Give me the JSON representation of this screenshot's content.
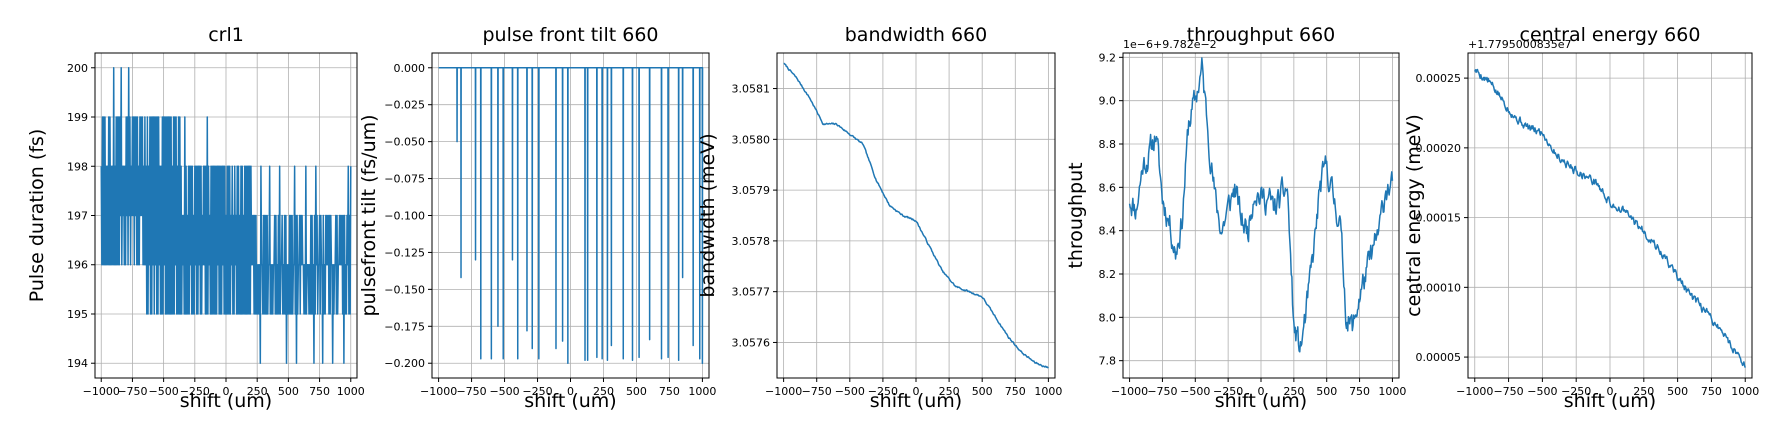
{
  "figure": {
    "background": "#ffffff",
    "line_color": "#1f77b4",
    "grid": true
  },
  "chart_data": [
    {
      "type": "line",
      "title": "crl1",
      "xlabel": "shift (um)",
      "ylabel": "Pulse duration (fs)",
      "xlim": [
        -1050,
        1050
      ],
      "ylim": [
        193.7,
        200.3
      ],
      "xticks": [
        -1000,
        -750,
        -500,
        -250,
        0,
        250,
        500,
        750,
        1000
      ],
      "xticklabels": [
        "−1000",
        "−750",
        "−500",
        "−250",
        "0",
        "250",
        "500",
        "750",
        "1000"
      ],
      "yticks": [
        194,
        195,
        196,
        197,
        198,
        199,
        200
      ],
      "yticklabels": [
        "194",
        "195",
        "196",
        "197",
        "198",
        "199",
        "200"
      ],
      "offset_text": "",
      "generator": "oscillate",
      "params": {
        "x0": -1000,
        "x1": 1000,
        "segments": [
          {
            "from": -1000,
            "to": -640,
            "low": 196,
            "high": 199,
            "peaks": [
              [
                -900,
                200
              ],
              [
                -840,
                200
              ],
              [
                -780,
                200
              ],
              [
                -640,
                200
              ]
            ]
          },
          {
            "from": -640,
            "to": -350,
            "low": 195,
            "high": 199,
            "peaks": []
          },
          {
            "from": -350,
            "to": 250,
            "low": 195,
            "high": 198,
            "peaks": [
              [
                -330,
                199
              ],
              [
                -150,
                199
              ]
            ]
          },
          {
            "from": 250,
            "to": 1000,
            "low": 195,
            "high": 197,
            "peaks": [
              [
                280,
                198
              ],
              [
                350,
                198
              ],
              [
                430,
                198
              ],
              [
                550,
                198
              ],
              [
                640,
                198
              ],
              [
                720,
                198
              ],
              [
                980,
                198
              ]
            ],
            "dips": [
              [
                270,
                194
              ],
              [
                480,
                194
              ],
              [
                560,
                194
              ],
              [
                700,
                194
              ],
              [
                770,
                194
              ],
              [
                850,
                194
              ],
              [
                940,
                194
              ]
            ]
          }
        ]
      }
    },
    {
      "type": "line",
      "title": "pulse front tilt 660",
      "xlabel": "shift (um)",
      "ylabel": "pulsefront tilt (fs/um)",
      "xlim": [
        -1050,
        1050
      ],
      "ylim": [
        -0.21,
        0.01
      ],
      "xticks": [
        -1000,
        -750,
        -500,
        -250,
        0,
        250,
        500,
        750,
        1000
      ],
      "xticklabels": [
        "−1000",
        "−750",
        "−500",
        "−250",
        "0",
        "250",
        "500",
        "750",
        "1000"
      ],
      "yticks": [
        0.0,
        -0.025,
        -0.05,
        -0.075,
        -0.1,
        -0.125,
        -0.15,
        -0.175,
        -0.2
      ],
      "yticklabels": [
        "0.000",
        "−0.025",
        "−0.050",
        "−0.075",
        "−0.100",
        "−0.125",
        "−0.150",
        "−0.175",
        "−0.200"
      ],
      "offset_text": "",
      "generator": "spikes",
      "params": {
        "base": 0.0,
        "spikes": [
          [
            -860,
            -0.05
          ],
          [
            -830,
            -0.142
          ],
          [
            -720,
            -0.13
          ],
          [
            -680,
            -0.197
          ],
          [
            -600,
            -0.197
          ],
          [
            -550,
            -0.175
          ],
          [
            -510,
            -0.197
          ],
          [
            -440,
            -0.13
          ],
          [
            -400,
            -0.197
          ],
          [
            -330,
            -0.178
          ],
          [
            -290,
            -0.19
          ],
          [
            -240,
            -0.197
          ],
          [
            -110,
            -0.19
          ],
          [
            -60,
            -0.185
          ],
          [
            -20,
            -0.2
          ],
          [
            110,
            -0.198
          ],
          [
            130,
            -0.198
          ],
          [
            200,
            -0.196
          ],
          [
            240,
            -0.197
          ],
          [
            280,
            -0.198
          ],
          [
            310,
            -0.188
          ],
          [
            400,
            -0.197
          ],
          [
            470,
            -0.198
          ],
          [
            520,
            -0.196
          ],
          [
            600,
            -0.184
          ],
          [
            690,
            -0.197
          ],
          [
            740,
            -0.196
          ],
          [
            820,
            -0.198
          ],
          [
            850,
            -0.142
          ],
          [
            930,
            -0.188
          ],
          [
            980,
            -0.197
          ],
          [
            1000,
            -0.2
          ]
        ]
      }
    },
    {
      "type": "line",
      "title": "bandwidth 660",
      "xlabel": "shift (um)",
      "ylabel": "bandwidth (meV)",
      "xlim": [
        -1050,
        1050
      ],
      "ylim": [
        3.05753,
        3.05817
      ],
      "xticks": [
        -1000,
        -750,
        -500,
        -250,
        0,
        250,
        500,
        750,
        1000
      ],
      "xticklabels": [
        "−1000",
        "−750",
        "−500",
        "−250",
        "0",
        "250",
        "500",
        "750",
        "1000"
      ],
      "yticks": [
        3.0576,
        3.0577,
        3.0578,
        3.0579,
        3.058,
        3.0581
      ],
      "yticklabels": [
        "3.0576",
        "3.0577",
        "3.0578",
        "3.0579",
        "3.0580",
        "3.0581"
      ],
      "offset_text": "",
      "generator": "wiggle",
      "params": {
        "points": [
          [
            -1000,
            3.05815
          ],
          [
            -900,
            3.05812
          ],
          [
            -800,
            3.05808
          ],
          [
            -700,
            3.05803
          ],
          [
            -600,
            3.05803
          ],
          [
            -500,
            3.05801
          ],
          [
            -400,
            3.05799
          ],
          [
            -300,
            3.05792
          ],
          [
            -200,
            3.05787
          ],
          [
            -100,
            3.05785
          ],
          [
            0,
            3.05784
          ],
          [
            100,
            3.05779
          ],
          [
            200,
            3.05774
          ],
          [
            300,
            3.05771
          ],
          [
            400,
            3.0577
          ],
          [
            500,
            3.05769
          ],
          [
            600,
            3.05765
          ],
          [
            700,
            3.05761
          ],
          [
            800,
            3.05758
          ],
          [
            900,
            3.05756
          ],
          [
            1000,
            3.05755
          ]
        ],
        "noise": 1.5e-06,
        "seed": 7
      }
    },
    {
      "type": "line",
      "title": "throughput 660",
      "xlabel": "shift (um)",
      "ylabel": "throughput",
      "xlim": [
        -1050,
        1050
      ],
      "ylim": [
        7.72,
        9.22
      ],
      "xticks": [
        -1000,
        -750,
        -500,
        -250,
        0,
        250,
        500,
        750,
        1000
      ],
      "xticklabels": [
        "−1000",
        "−750",
        "−500",
        "−250",
        "0",
        "250",
        "500",
        "750",
        "1000"
      ],
      "yticks": [
        7.8,
        8.0,
        8.2,
        8.4,
        8.6,
        8.8,
        9.0,
        9.2
      ],
      "yticklabels": [
        "7.8",
        "8.0",
        "8.2",
        "8.4",
        "8.6",
        "8.8",
        "9.0",
        "9.2"
      ],
      "offset_text": "1e−6+9.782e−2",
      "generator": "wiggle",
      "params": {
        "points": [
          [
            -1000,
            8.55
          ],
          [
            -950,
            8.5
          ],
          [
            -900,
            8.7
          ],
          [
            -850,
            8.75
          ],
          [
            -800,
            8.85
          ],
          [
            -750,
            8.55
          ],
          [
            -700,
            8.45
          ],
          [
            -650,
            8.3
          ],
          [
            -600,
            8.45
          ],
          [
            -550,
            8.9
          ],
          [
            -500,
            9.0
          ],
          [
            -450,
            9.15
          ],
          [
            -400,
            8.85
          ],
          [
            -350,
            8.55
          ],
          [
            -300,
            8.4
          ],
          [
            -250,
            8.5
          ],
          [
            -200,
            8.6
          ],
          [
            -150,
            8.45
          ],
          [
            -100,
            8.4
          ],
          [
            -50,
            8.6
          ],
          [
            0,
            8.55
          ],
          [
            50,
            8.55
          ],
          [
            100,
            8.5
          ],
          [
            150,
            8.55
          ],
          [
            200,
            8.6
          ],
          [
            250,
            7.95
          ],
          [
            300,
            7.85
          ],
          [
            350,
            8.05
          ],
          [
            400,
            8.3
          ],
          [
            450,
            8.6
          ],
          [
            500,
            8.7
          ],
          [
            550,
            8.55
          ],
          [
            600,
            8.45
          ],
          [
            650,
            8.0
          ],
          [
            700,
            7.95
          ],
          [
            750,
            8.1
          ],
          [
            800,
            8.2
          ],
          [
            850,
            8.3
          ],
          [
            900,
            8.4
          ],
          [
            950,
            8.6
          ],
          [
            1000,
            8.6
          ]
        ],
        "noise": 0.05,
        "seed": 11
      }
    },
    {
      "type": "line",
      "title": "central energy 660",
      "xlabel": "shift (um)",
      "ylabel": "central energy (meV)",
      "xlim": [
        -1050,
        1050
      ],
      "ylim": [
        3.5e-05,
        0.000268
      ],
      "xticks": [
        -1000,
        -750,
        -500,
        -250,
        0,
        250,
        500,
        750,
        1000
      ],
      "xticklabels": [
        "−1000",
        "−750",
        "−500",
        "−250",
        "0",
        "250",
        "500",
        "750",
        "1000"
      ],
      "yticks": [
        5e-05,
        0.0001,
        0.00015,
        0.0002,
        0.00025
      ],
      "yticklabels": [
        "0.00005",
        "0.00010",
        "0.00015",
        "0.00020",
        "0.00025"
      ],
      "offset_text": "+1.7795000835e7",
      "generator": "wiggle",
      "params": {
        "points": [
          [
            -1000,
            0.000256
          ],
          [
            -900,
            0.000248
          ],
          [
            -800,
            0.000235
          ],
          [
            -700,
            0.000222
          ],
          [
            -600,
            0.000214
          ],
          [
            -500,
            0.000211
          ],
          [
            -400,
            0.000196
          ],
          [
            -300,
            0.000187
          ],
          [
            -200,
            0.000181
          ],
          [
            -100,
            0.000175
          ],
          [
            0,
            0.00016
          ],
          [
            100,
            0.000155
          ],
          [
            200,
            0.000145
          ],
          [
            300,
            0.000135
          ],
          [
            400,
            0.000122
          ],
          [
            500,
            0.000108
          ],
          [
            600,
            9.3e-05
          ],
          [
            700,
            8.3e-05
          ],
          [
            800,
            7.2e-05
          ],
          [
            900,
            5.8e-05
          ],
          [
            1000,
            4.5e-05
          ]
        ],
        "noise": 2.5e-06,
        "seed": 5
      }
    }
  ]
}
